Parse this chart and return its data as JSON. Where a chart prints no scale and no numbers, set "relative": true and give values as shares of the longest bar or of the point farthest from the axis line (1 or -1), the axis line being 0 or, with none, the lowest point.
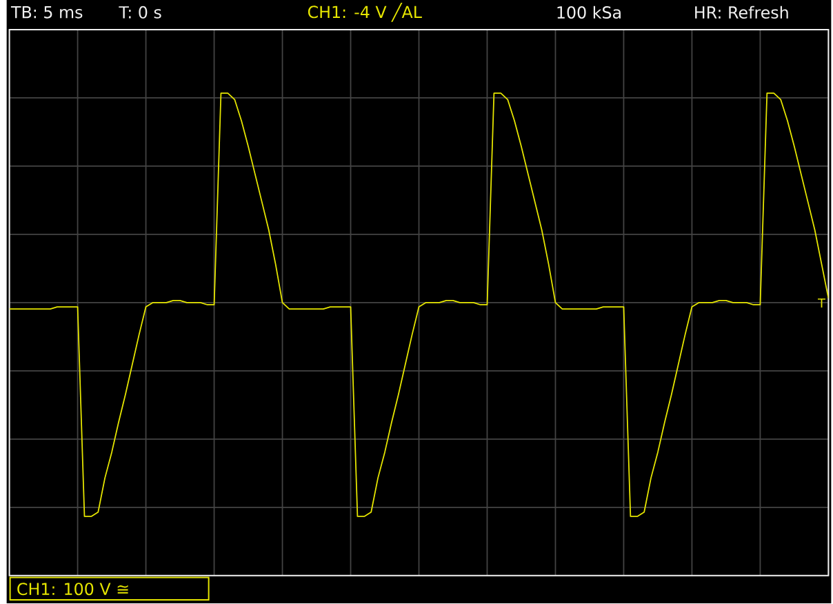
{
  "chart_data": {
    "type": "line",
    "relative": true,
    "grid": true,
    "categories": [
      null,
      null,
      null,
      null,
      null,
      null,
      null,
      null,
      null,
      null,
      null,
      null,
      null,
      null,
      null,
      null,
      null,
      null,
      null,
      null,
      null,
      null,
      null,
      null,
      null,
      null,
      null,
      null,
      null,
      null,
      null,
      null,
      null,
      null,
      null,
      null,
      null,
      null,
      null,
      null,
      null,
      null,
      null,
      null,
      null,
      null,
      null,
      null,
      null,
      null,
      null,
      null,
      null,
      null,
      null,
      null,
      null,
      null,
      null,
      null,
      null,
      null,
      null,
      null,
      null,
      null,
      null,
      null,
      null,
      null,
      null,
      null,
      null,
      null,
      null,
      null,
      null,
      null,
      null,
      null,
      null,
      null,
      null,
      null,
      null,
      null,
      null,
      null,
      null,
      null,
      null,
      null,
      null,
      null,
      null,
      null,
      null,
      null,
      null,
      null,
      null,
      null,
      null,
      null,
      null,
      null,
      null,
      null,
      null,
      null,
      null,
      null,
      null,
      null,
      null,
      null,
      null,
      null,
      null,
      null,
      null
    ],
    "series": [
      {
        "color": "#e6e600",
        "values": [
          -0.03,
          -0.03,
          -0.03,
          -0.03,
          -0.03,
          -0.03,
          -0.03,
          -0.02,
          -0.02,
          -0.02,
          -0.02,
          -1,
          -1,
          -0.98,
          -0.82,
          -0.7,
          -0.56,
          -0.43,
          -0.29,
          -0.15,
          -0.02,
          0,
          0,
          0,
          0.01,
          0.01,
          0,
          0,
          0,
          -0.01,
          -0.01,
          0.98,
          0.98,
          0.95,
          0.85,
          0.73,
          0.6,
          0.47,
          0.34,
          0.18,
          0,
          -0.03,
          -0.03,
          -0.03,
          -0.03,
          -0.03,
          -0.03,
          -0.02,
          -0.02,
          -0.02,
          -0.02,
          -1,
          -1,
          -0.98,
          -0.82,
          -0.7,
          -0.56,
          -0.43,
          -0.29,
          -0.15,
          -0.02,
          0,
          0,
          0,
          0.01,
          0.01,
          0,
          0,
          0,
          -0.01,
          -0.01,
          0.98,
          0.98,
          0.95,
          0.85,
          0.73,
          0.6,
          0.47,
          0.34,
          0.18,
          0,
          -0.03,
          -0.03,
          -0.03,
          -0.03,
          -0.03,
          -0.03,
          -0.02,
          -0.02,
          -0.02,
          -0.02,
          -1,
          -1,
          -0.98,
          -0.82,
          -0.7,
          -0.56,
          -0.43,
          -0.29,
          -0.15,
          -0.02,
          0,
          0,
          0,
          0.01,
          0.01,
          0,
          0,
          0,
          -0.01,
          -0.01,
          0.98,
          0.98,
          0.95,
          0.85,
          0.73,
          0.6,
          0.47,
          0.34,
          0.18,
          0.02
        ]
      }
    ],
    "annotations": [
      "TB: 5 ms",
      "T: 0 s",
      "CH1: -4 V ╱AL",
      "100 kSa",
      "HR: Refresh",
      "CH1: 100 V ≅",
      "T"
    ]
  }
}
